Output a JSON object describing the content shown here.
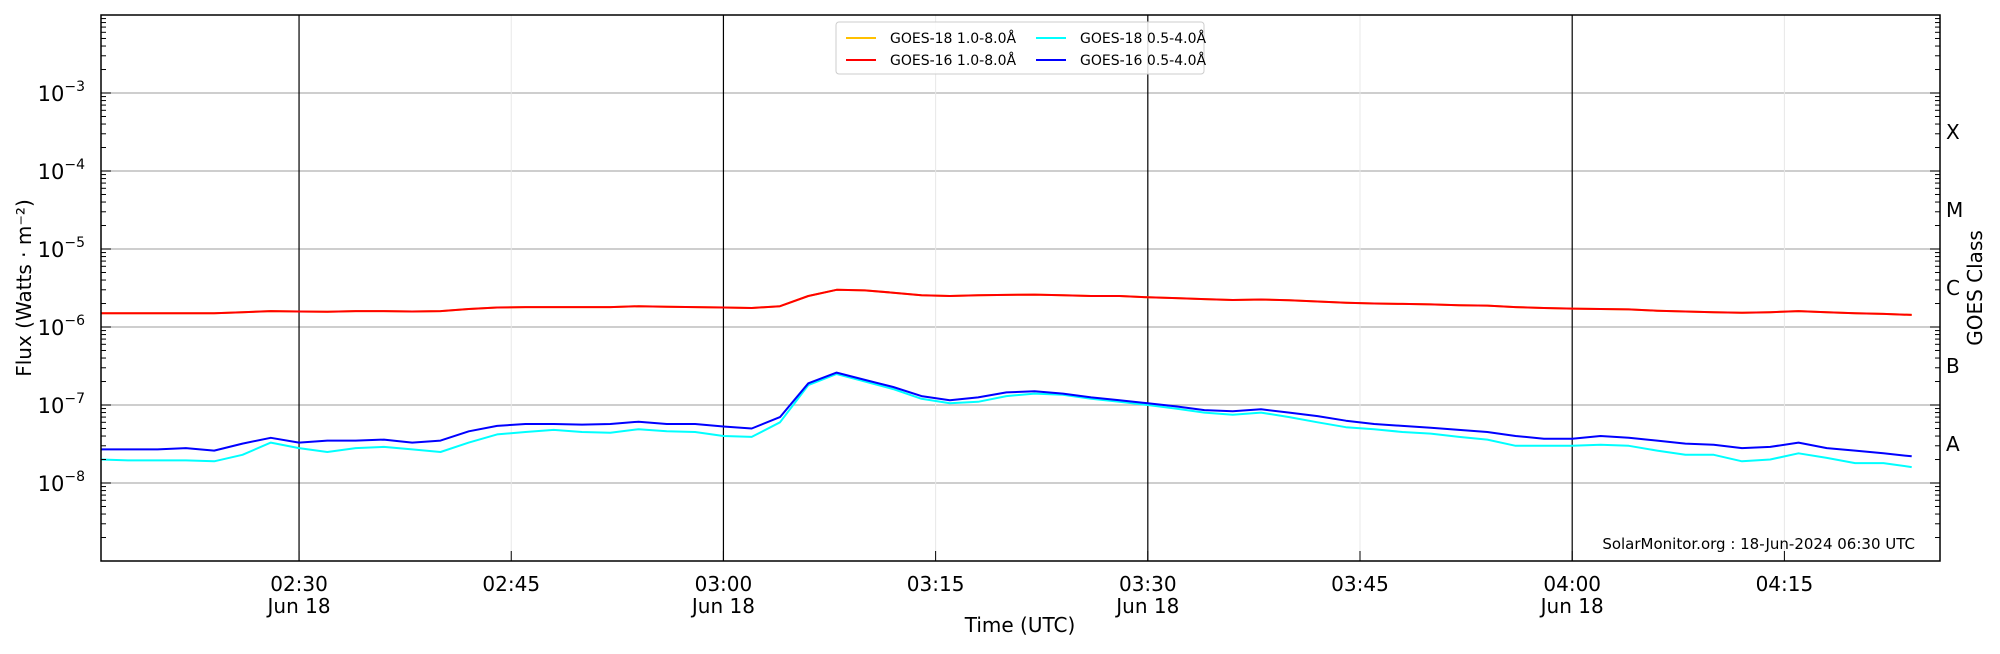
{
  "chart_data": {
    "type": "line",
    "xlabel": "Time (UTC)",
    "ylabel": "Flux (Watts · m⁻²)",
    "ylabel_right": "GOES Class",
    "yscale": "log",
    "ylim": [
      1e-09,
      0.01
    ],
    "xlim": [
      "02:16",
      "04:26"
    ],
    "grid": true,
    "legend_placement": "top-center",
    "annotation": "SolarMonitor.org : 18-Jun-2024 06:30 UTC",
    "y_ticks": [
      {
        "value": 0.001,
        "label": "10",
        "exp": "−3"
      },
      {
        "value": 0.0001,
        "label": "10",
        "exp": "−4"
      },
      {
        "value": 1e-05,
        "label": "10",
        "exp": "−5"
      },
      {
        "value": 1e-06,
        "label": "10",
        "exp": "−6"
      },
      {
        "value": 1e-07,
        "label": "10",
        "exp": "−7"
      },
      {
        "value": 1e-08,
        "label": "10",
        "exp": "−8"
      }
    ],
    "class_labels": [
      {
        "value": 0.000316,
        "label": "X"
      },
      {
        "value": 3.16e-05,
        "label": "M"
      },
      {
        "value": 3.16e-06,
        "label": "C"
      },
      {
        "value": 3.16e-07,
        "label": "B"
      },
      {
        "value": 3.16e-08,
        "label": "A"
      }
    ],
    "x_ticks": [
      {
        "time": "02:30",
        "label": "02:30",
        "sublabel": "Jun 18",
        "major": true
      },
      {
        "time": "02:45",
        "label": "02:45",
        "sublabel": "",
        "major": false
      },
      {
        "time": "03:00",
        "label": "03:00",
        "sublabel": "Jun 18",
        "major": true
      },
      {
        "time": "03:15",
        "label": "03:15",
        "sublabel": "",
        "major": false
      },
      {
        "time": "03:30",
        "label": "03:30",
        "sublabel": "Jun 18",
        "major": true
      },
      {
        "time": "03:45",
        "label": "03:45",
        "sublabel": "",
        "major": false
      },
      {
        "time": "04:00",
        "label": "04:00",
        "sublabel": "Jun 18",
        "major": true
      },
      {
        "time": "04:15",
        "label": "04:15",
        "sublabel": "",
        "major": false
      }
    ],
    "x": [
      "02:16",
      "02:18",
      "02:20",
      "02:22",
      "02:24",
      "02:26",
      "02:28",
      "02:30",
      "02:32",
      "02:34",
      "02:36",
      "02:38",
      "02:40",
      "02:42",
      "02:44",
      "02:46",
      "02:48",
      "02:50",
      "02:52",
      "02:54",
      "02:56",
      "02:58",
      "03:00",
      "03:02",
      "03:04",
      "03:06",
      "03:08",
      "03:10",
      "03:12",
      "03:14",
      "03:16",
      "03:18",
      "03:20",
      "03:22",
      "03:24",
      "03:26",
      "03:28",
      "03:30",
      "03:32",
      "03:34",
      "03:36",
      "03:38",
      "03:40",
      "03:42",
      "03:44",
      "03:46",
      "03:48",
      "03:50",
      "03:52",
      "03:54",
      "03:56",
      "03:58",
      "04:00",
      "04:02",
      "04:04",
      "04:06",
      "04:08",
      "04:10",
      "04:12",
      "04:14",
      "04:16",
      "04:18",
      "04:20",
      "04:22",
      "04:24"
    ],
    "series": [
      {
        "name": "GOES-18 1.0-8.0Å",
        "color": "#ffc000",
        "values": [
          1.5e-06,
          1.5e-06,
          1.5e-06,
          1.5e-06,
          1.5e-06,
          1.55e-06,
          1.6e-06,
          1.58e-06,
          1.57e-06,
          1.6e-06,
          1.6e-06,
          1.58e-06,
          1.6e-06,
          1.7e-06,
          1.78e-06,
          1.8e-06,
          1.8e-06,
          1.8e-06,
          1.8e-06,
          1.85e-06,
          1.82e-06,
          1.8e-06,
          1.78e-06,
          1.75e-06,
          1.85e-06,
          2.5e-06,
          3e-06,
          2.95e-06,
          2.75e-06,
          2.55e-06,
          2.5e-06,
          2.55e-06,
          2.58e-06,
          2.6e-06,
          2.55e-06,
          2.5e-06,
          2.5e-06,
          2.4e-06,
          2.35e-06,
          2.28e-06,
          2.22e-06,
          2.25e-06,
          2.2e-06,
          2.12e-06,
          2.05e-06,
          2e-06,
          1.98e-06,
          1.95e-06,
          1.9e-06,
          1.88e-06,
          1.8e-06,
          1.75e-06,
          1.72e-06,
          1.7e-06,
          1.68e-06,
          1.62e-06,
          1.58e-06,
          1.55e-06,
          1.52e-06,
          1.55e-06,
          1.6e-06,
          1.55e-06,
          1.5e-06,
          1.47e-06,
          1.43e-06
        ]
      },
      {
        "name": "GOES-16 1.0-8.0Å",
        "color": "#ff0000",
        "values": [
          1.5e-06,
          1.5e-06,
          1.5e-06,
          1.5e-06,
          1.5e-06,
          1.55e-06,
          1.6e-06,
          1.58e-06,
          1.57e-06,
          1.6e-06,
          1.6e-06,
          1.58e-06,
          1.6e-06,
          1.7e-06,
          1.78e-06,
          1.8e-06,
          1.8e-06,
          1.8e-06,
          1.8e-06,
          1.85e-06,
          1.82e-06,
          1.8e-06,
          1.78e-06,
          1.75e-06,
          1.85e-06,
          2.5e-06,
          3e-06,
          2.95e-06,
          2.75e-06,
          2.55e-06,
          2.5e-06,
          2.55e-06,
          2.58e-06,
          2.6e-06,
          2.55e-06,
          2.5e-06,
          2.5e-06,
          2.4e-06,
          2.35e-06,
          2.28e-06,
          2.22e-06,
          2.25e-06,
          2.2e-06,
          2.12e-06,
          2.05e-06,
          2e-06,
          1.98e-06,
          1.95e-06,
          1.9e-06,
          1.88e-06,
          1.8e-06,
          1.75e-06,
          1.72e-06,
          1.7e-06,
          1.68e-06,
          1.62e-06,
          1.58e-06,
          1.55e-06,
          1.52e-06,
          1.55e-06,
          1.6e-06,
          1.55e-06,
          1.5e-06,
          1.47e-06,
          1.43e-06
        ]
      },
      {
        "name": "GOES-18 0.5-4.0Å",
        "color": "#00ffff",
        "values": [
          2e-08,
          1.95e-08,
          1.95e-08,
          1.95e-08,
          1.9e-08,
          2.3e-08,
          3.3e-08,
          2.8e-08,
          2.5e-08,
          2.8e-08,
          2.9e-08,
          2.7e-08,
          2.5e-08,
          3.3e-08,
          4.2e-08,
          4.5e-08,
          4.8e-08,
          4.5e-08,
          4.4e-08,
          4.9e-08,
          4.6e-08,
          4.5e-08,
          4e-08,
          3.9e-08,
          6e-08,
          1.8e-07,
          2.5e-07,
          2e-07,
          1.6e-07,
          1.2e-07,
          1.05e-07,
          1.1e-07,
          1.3e-07,
          1.4e-07,
          1.35e-07,
          1.2e-07,
          1.1e-07,
          1e-07,
          9e-08,
          8e-08,
          7.5e-08,
          8e-08,
          7e-08,
          6e-08,
          5.2e-08,
          4.9e-08,
          4.5e-08,
          4.3e-08,
          3.9e-08,
          3.6e-08,
          3e-08,
          3e-08,
          3e-08,
          3.1e-08,
          3e-08,
          2.6e-08,
          2.3e-08,
          2.3e-08,
          1.9e-08,
          2e-08,
          2.4e-08,
          2.1e-08,
          1.8e-08,
          1.8e-08,
          1.6e-08
        ]
      },
      {
        "name": "GOES-16 0.5-4.0Å",
        "color": "#0000ff",
        "values": [
          2.7e-08,
          2.7e-08,
          2.7e-08,
          2.8e-08,
          2.6e-08,
          3.2e-08,
          3.8e-08,
          3.3e-08,
          3.5e-08,
          3.5e-08,
          3.6e-08,
          3.3e-08,
          3.5e-08,
          4.6e-08,
          5.4e-08,
          5.7e-08,
          5.7e-08,
          5.6e-08,
          5.7e-08,
          6.1e-08,
          5.7e-08,
          5.7e-08,
          5.3e-08,
          5e-08,
          7e-08,
          1.9e-07,
          2.6e-07,
          2.1e-07,
          1.7e-07,
          1.3e-07,
          1.15e-07,
          1.25e-07,
          1.45e-07,
          1.5e-07,
          1.4e-07,
          1.25e-07,
          1.15e-07,
          1.05e-07,
          9.6e-08,
          8.6e-08,
          8.3e-08,
          8.8e-08,
          8e-08,
          7.2e-08,
          6.3e-08,
          5.7e-08,
          5.4e-08,
          5.1e-08,
          4.8e-08,
          4.5e-08,
          4e-08,
          3.7e-08,
          3.7e-08,
          4e-08,
          3.8e-08,
          3.5e-08,
          3.2e-08,
          3.1e-08,
          2.8e-08,
          2.9e-08,
          3.3e-08,
          2.8e-08,
          2.6e-08,
          2.4e-08,
          2.2e-08
        ]
      }
    ]
  }
}
